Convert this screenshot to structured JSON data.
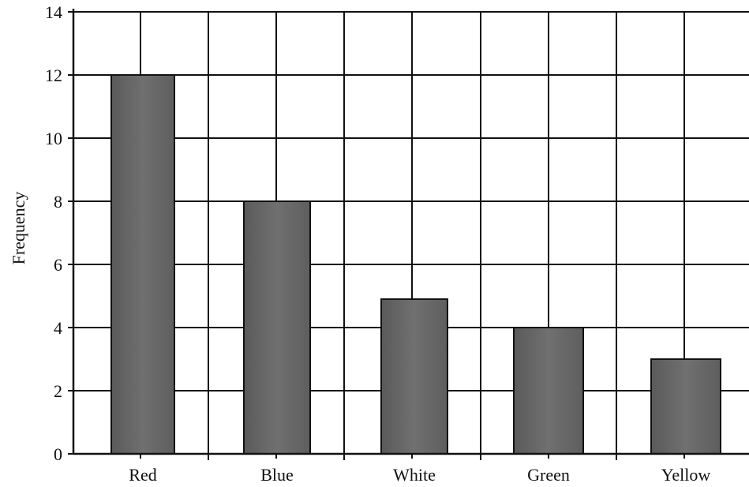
{
  "chart_data": {
    "type": "bar",
    "title": "",
    "xlabel": "",
    "ylabel": "Frequency",
    "categories": [
      "Red",
      "Blue",
      "White",
      "Green",
      "Yellow"
    ],
    "values": [
      12,
      8,
      4.9,
      4,
      3
    ],
    "ylim": [
      0,
      14
    ],
    "yticks": [
      "0",
      "2",
      "4",
      "6",
      "8",
      "10",
      "12",
      "14"
    ],
    "grid": true,
    "colors": {
      "bar": "#6a6a6a",
      "bar_dark": "#555555",
      "grid": "#111111",
      "background": "#ffffff"
    }
  }
}
